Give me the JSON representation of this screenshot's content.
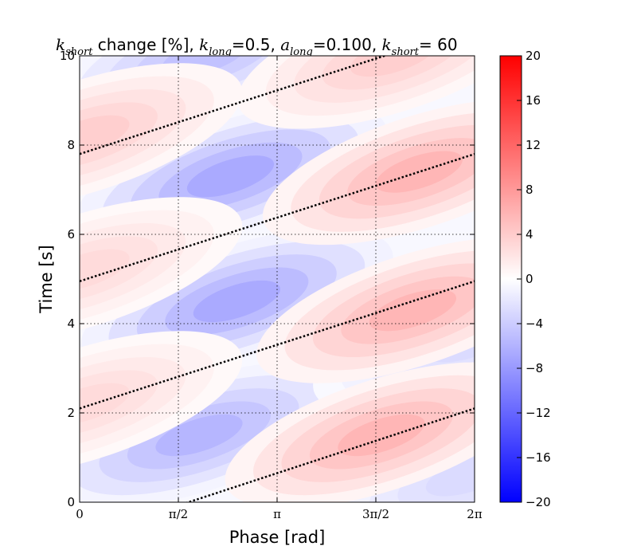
{
  "chart_data": {
    "type": "heatmap",
    "title_parts": [
      {
        "text": "k",
        "kind": "math"
      },
      {
        "text": "short",
        "kind": "sub"
      },
      {
        "text": " change [%], ",
        "kind": "plain"
      },
      {
        "text": "k",
        "kind": "math"
      },
      {
        "text": "long",
        "kind": "sub"
      },
      {
        "text": "=0.5, ",
        "kind": "plain"
      },
      {
        "text": "a",
        "kind": "math"
      },
      {
        "text": "long",
        "kind": "sub"
      },
      {
        "text": "=0.100, ",
        "kind": "plain"
      },
      {
        "text": "k",
        "kind": "math"
      },
      {
        "text": "short",
        "kind": "sub"
      },
      {
        "text": "= 60",
        "kind": "plain"
      }
    ],
    "xlabel": "Phase [rad]",
    "ylabel": "Time [s]",
    "xlim": [
      0,
      6.2832
    ],
    "ylim": [
      0,
      10
    ],
    "x_ticks": [
      {
        "value": 0,
        "label": "0"
      },
      {
        "value": 1.5708,
        "label": "π/2"
      },
      {
        "value": 3.1416,
        "label": "π"
      },
      {
        "value": 4.7124,
        "label": "3π/2"
      },
      {
        "value": 6.2832,
        "label": "2π"
      }
    ],
    "y_ticks": [
      {
        "value": 0,
        "label": "0"
      },
      {
        "value": 2,
        "label": "2"
      },
      {
        "value": 4,
        "label": "4"
      },
      {
        "value": 6,
        "label": "6"
      },
      {
        "value": 8,
        "label": "8"
      },
      {
        "value": 10,
        "label": "10"
      }
    ],
    "grid": "dotted",
    "colormap": "bwr",
    "colors": {
      "negative": "#0000ff",
      "zero": "#ffffff",
      "positive": "#ff0000"
    },
    "colorbar": {
      "range": [
        -20,
        20
      ],
      "ticks": [
        {
          "value": 20,
          "label": "20"
        },
        {
          "value": 16,
          "label": "16"
        },
        {
          "value": 12,
          "label": "12"
        },
        {
          "value": 8,
          "label": "8"
        },
        {
          "value": 4,
          "label": "4"
        },
        {
          "value": 0,
          "label": "0"
        },
        {
          "value": -4,
          "label": "−4"
        },
        {
          "value": -8,
          "label": "−8"
        },
        {
          "value": -12,
          "label": "−12"
        },
        {
          "value": -16,
          "label": "−16"
        },
        {
          "value": -20,
          "label": "−20"
        }
      ]
    },
    "field": {
      "blobs": [
        {
          "name": "neg-top",
          "cx": 2.0,
          "cy": 10.0,
          "amplitude": -5
        },
        {
          "name": "neg-upper",
          "cx": 2.4,
          "cy": 7.3,
          "amplitude": -7
        },
        {
          "name": "neg-middle",
          "cx": 2.5,
          "cy": 4.5,
          "amplitude": -7
        },
        {
          "name": "neg-lower",
          "cx": 1.9,
          "cy": 1.5,
          "amplitude": -6
        },
        {
          "name": "neg-corner",
          "cx": 6.2,
          "cy": 3.6,
          "amplitude": -3
        },
        {
          "name": "neg-corner-low",
          "cx": 6.2,
          "cy": 0.6,
          "amplitude": -3
        },
        {
          "name": "pos-upper-right",
          "cx": 5.4,
          "cy": 7.4,
          "amplitude": 6
        },
        {
          "name": "pos-middle-right",
          "cx": 5.3,
          "cy": 4.3,
          "amplitude": 6
        },
        {
          "name": "pos-lower-right",
          "cx": 4.8,
          "cy": 1.5,
          "amplitude": 6
        },
        {
          "name": "pos-top-right",
          "cx": 5.0,
          "cy": 10.0,
          "amplitude": 4
        },
        {
          "name": "pos-left-upper",
          "cx": 0.1,
          "cy": 8.2,
          "amplitude": 4
        },
        {
          "name": "pos-left-middle",
          "cx": 0.1,
          "cy": 5.2,
          "amplitude": 3
        },
        {
          "name": "pos-left-lower",
          "cx": 0.1,
          "cy": 2.2,
          "amplitude": 3
        }
      ]
    },
    "overlay_lines": [
      {
        "x": [
          0,
          6.2832
        ],
        "y": [
          -0.8,
          2.1
        ],
        "style": "dotted"
      },
      {
        "x": [
          0,
          6.2832
        ],
        "y": [
          2.1,
          4.95
        ],
        "style": "dotted"
      },
      {
        "x": [
          0,
          6.2832
        ],
        "y": [
          4.95,
          7.8
        ],
        "style": "dotted"
      },
      {
        "x": [
          0,
          6.2832
        ],
        "y": [
          7.8,
          10.65
        ],
        "style": "dotted"
      }
    ]
  }
}
